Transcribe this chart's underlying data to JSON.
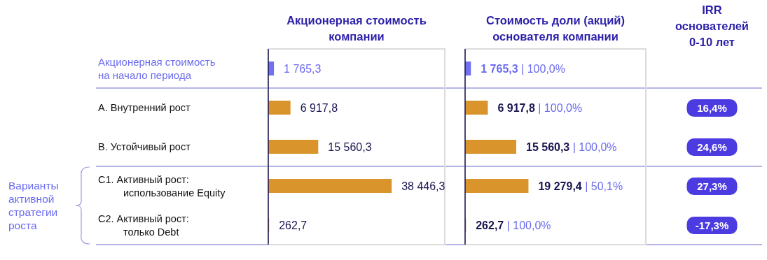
{
  "chart_data": [
    {
      "type": "bar",
      "orientation": "horizontal",
      "title": "Акционерная стоимость компании",
      "categories": [
        "Акционерная стоимость на начало периода",
        "A. Внутренний рост",
        "B. Устойчивый рост",
        "C1. Активный рост: использование Equity",
        "C2. Активный рост: только Debt"
      ],
      "values": [
        1765.3,
        6917.8,
        15560.3,
        38446.3,
        262.7
      ],
      "color": "#d9952c",
      "colors": [
        "#7070f0",
        "#d9952c",
        "#d9952c",
        "#d9952c",
        "#d9952c"
      ],
      "value_labels": [
        "1 765,3",
        "6 917,8",
        "15 560,3",
        "38 446,3",
        "262,7"
      ],
      "xlim": [
        0,
        55000
      ],
      "tick_labels": "y",
      "annotations": [
        "Варианты активной стратегии роста"
      ]
    },
    {
      "type": "bar",
      "orientation": "horizontal",
      "title": "Стоимость доли (акций) основателя компании",
      "categories": [
        null,
        null,
        null,
        null,
        null
      ],
      "values": [
        1765.3,
        6917.8,
        15560.3,
        19279.4,
        262.7
      ],
      "color": "#d9952c",
      "colors": [
        "#7070f0",
        "#d9952c",
        "#d9952c",
        "#d9952c",
        "#d9952c"
      ],
      "value_labels": [
        "1 765,3 | 100,0%",
        "6 917,8 | 100,0%",
        "15 560,3 | 100,0%",
        "19 279,4 | 50,1%",
        "262,7 | 100,0%"
      ],
      "xlim": [
        0,
        55000
      ],
      "tick_labels": false
    },
    {
      "type": "other",
      "title": "IRR основателей 0-10 лет",
      "annotations": [
        "16,4%",
        "24,6%",
        "27,3%",
        "-17,3%"
      ]
    }
  ]
}
